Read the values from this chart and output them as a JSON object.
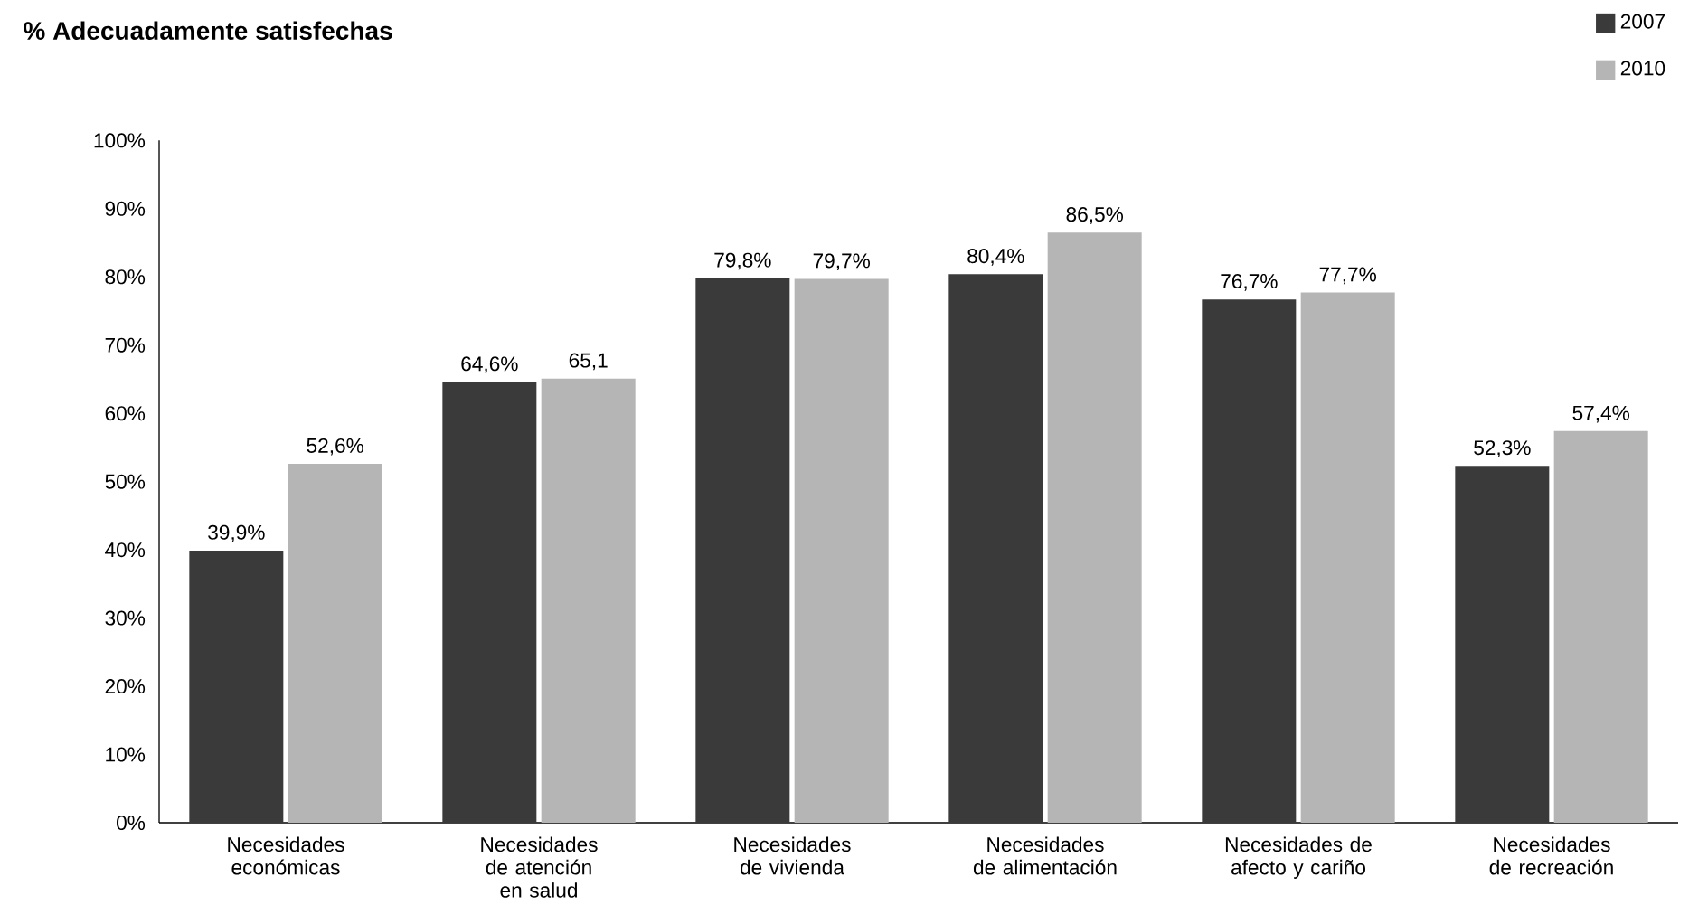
{
  "chart_data": {
    "type": "bar",
    "title": "% Adecuadamente satisfechas",
    "categories": [
      "Necesidades económicas",
      "Necesidades de atención en salud",
      "Necesidades de vivienda",
      "Necesidades de alimentación",
      "Necesidades de afecto y cariño",
      "Necesidades de recreación"
    ],
    "series": [
      {
        "name": "2007",
        "color": "#3a3a3a",
        "values": [
          39.9,
          64.6,
          79.8,
          80.4,
          76.7,
          52.3
        ],
        "value_labels": [
          "39,9%",
          "64,6%",
          "79,8%",
          "80,4%",
          "76,7%",
          "52,3%"
        ]
      },
      {
        "name": "2010",
        "color": "#b5b5b5",
        "values": [
          52.6,
          65.1,
          79.7,
          86.5,
          77.7,
          57.4
        ],
        "value_labels": [
          "52,6%",
          "65,1",
          "79,7%",
          "86,5%",
          "77,7%",
          "57,4%"
        ]
      }
    ],
    "ylim": [
      0,
      100
    ],
    "yticks": [
      {
        "value": 0,
        "label": "0%"
      },
      {
        "value": 10,
        "label": "10%"
      },
      {
        "value": 20,
        "label": "20%"
      },
      {
        "value": 30,
        "label": "30%"
      },
      {
        "value": 40,
        "label": "40%"
      },
      {
        "value": 50,
        "label": "50%"
      },
      {
        "value": 60,
        "label": "60%"
      },
      {
        "value": 70,
        "label": "70%"
      },
      {
        "value": 80,
        "label": "80%"
      },
      {
        "value": 90,
        "label": "90%"
      },
      {
        "value": 100,
        "label": "100%"
      }
    ],
    "grid": false,
    "legend": "top right"
  }
}
